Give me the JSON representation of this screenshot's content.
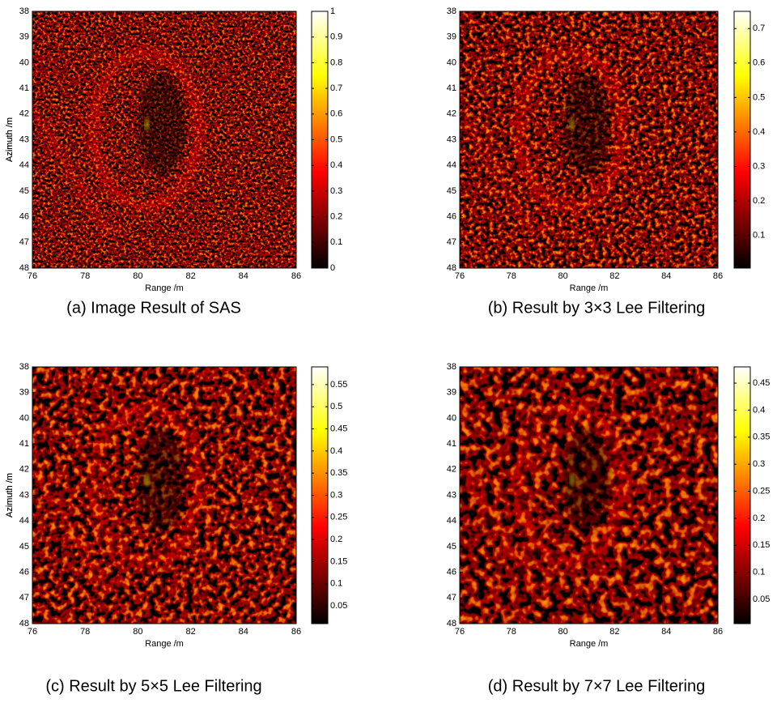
{
  "chart_data": [
    {
      "type": "image",
      "colormap": "hot",
      "caption": "(a) Image Result of SAS",
      "xlabel": "Range /m",
      "ylabel": "Azimuth /m",
      "xlim": [
        76,
        86
      ],
      "xticks": [
        76,
        78,
        80,
        82,
        84,
        86
      ],
      "ylim": [
        38,
        48
      ],
      "yticks": [
        38,
        39,
        40,
        41,
        42,
        43,
        44,
        45,
        46,
        47,
        48
      ],
      "clim": [
        0,
        1
      ],
      "cticks": [
        0,
        0.1,
        0.2,
        0.3,
        0.4,
        0.5,
        0.6,
        0.7,
        0.8,
        0.9,
        1
      ]
    },
    {
      "type": "image",
      "colormap": "hot",
      "caption": "(b) Result by 3×3 Lee Filtering",
      "xlabel": "Range /m",
      "ylabel": "Azimuth /m",
      "xlim": [
        76,
        86
      ],
      "xticks": [
        76,
        78,
        80,
        82,
        84,
        86
      ],
      "ylim": [
        38,
        48
      ],
      "yticks": [
        38,
        39,
        40,
        41,
        42,
        43,
        44,
        45,
        46,
        47,
        48
      ],
      "clim": [
        0.005,
        0.75
      ],
      "cticks": [
        0.1,
        0.2,
        0.3,
        0.4,
        0.5,
        0.6,
        0.7
      ]
    },
    {
      "type": "image",
      "colormap": "hot",
      "caption": "(c) Result by 5×5 Lee Filtering",
      "xlabel": "Range /m",
      "ylabel": "Azimuth /m",
      "xlim": [
        76,
        86
      ],
      "xticks": [
        76,
        78,
        80,
        82,
        84,
        86
      ],
      "ylim": [
        38,
        48
      ],
      "yticks": [
        38,
        39,
        40,
        41,
        42,
        43,
        44,
        45,
        46,
        47,
        48
      ],
      "clim": [
        0.01,
        0.59
      ],
      "cticks": [
        0.05,
        0.1,
        0.15,
        0.2,
        0.25,
        0.3,
        0.35,
        0.4,
        0.45,
        0.5,
        0.55
      ]
    },
    {
      "type": "image",
      "colormap": "hot",
      "caption": "(d) Result by 7×7 Lee Filtering",
      "xlabel": "Range /m",
      "ylabel": "Azimuth /m",
      "xlim": [
        76,
        86
      ],
      "xticks": [
        76,
        78,
        80,
        82,
        84,
        86
      ],
      "ylim": [
        38,
        48
      ],
      "yticks": [
        38,
        39,
        40,
        41,
        42,
        43,
        44,
        45,
        46,
        47,
        48
      ],
      "clim": [
        0.005,
        0.48
      ],
      "cticks": [
        0.05,
        0.1,
        0.15,
        0.2,
        0.25,
        0.3,
        0.35,
        0.4,
        0.45
      ]
    }
  ]
}
